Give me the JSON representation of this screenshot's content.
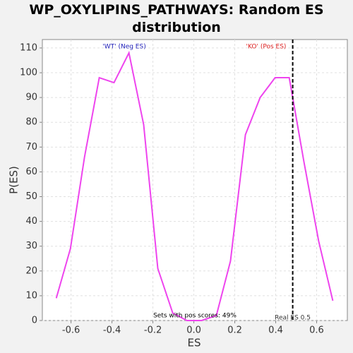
{
  "chart_data": {
    "type": "line",
    "title": "WP_OXYLIPINS_PATHWAYS: Random ES distribution",
    "xlabel": "ES",
    "ylabel": "P(ES)",
    "x": [
      -0.672,
      -0.603,
      -0.534,
      -0.462,
      -0.39,
      -0.317,
      -0.245,
      -0.176,
      -0.103,
      -0.034,
      0.038,
      0.11,
      0.179,
      0.252,
      0.324,
      0.397,
      0.466,
      0.538,
      0.61,
      0.679
    ],
    "series": [
      {
        "name": "P(ES)",
        "color": "#ee44ee",
        "values": [
          9,
          29,
          66,
          98,
          96,
          108,
          79,
          21,
          3,
          0,
          0,
          2,
          24,
          75,
          90,
          98,
          98,
          64,
          32,
          8
        ]
      }
    ],
    "xlim": [
      -0.74,
      0.75
    ],
    "ylim": [
      0,
      113.4
    ],
    "xticks": [
      -0.6,
      -0.4,
      -0.2,
      {
        "value": 0,
        "label": "0.0"
      },
      0.2,
      0.4,
      0.6
    ],
    "yticks": [
      0,
      10,
      20,
      30,
      40,
      50,
      60,
      70,
      80,
      90,
      100,
      110
    ],
    "grid": true,
    "real_es": {
      "value": 0.483,
      "label": "Real ES 0.5"
    },
    "annotations": {
      "neg": "'WT' (Neg ES)",
      "pos": "'KO' (Pos ES)",
      "pos_scores": "Sets with pos scores: 49%"
    }
  }
}
